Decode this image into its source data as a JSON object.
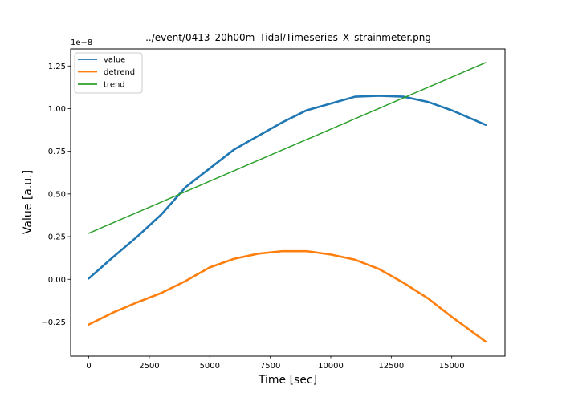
{
  "chart_data": {
    "type": "line",
    "title": "../event/0413_20h00m_Tidal/Timeseries_X_strainmeter.png",
    "xlabel": "Time [sec]",
    "ylabel": "Value [a.u.]",
    "y_offset_label": "1e−8",
    "xlim": [
      -750,
      17200
    ],
    "ylim": [
      -0.45,
      1.35
    ],
    "xticks": [
      0,
      2500,
      5000,
      7500,
      10000,
      12500,
      15000
    ],
    "xtick_labels": [
      "0",
      "2500",
      "5000",
      "7500",
      "10000",
      "12500",
      "15000"
    ],
    "yticks": [
      -0.25,
      0.0,
      0.25,
      0.5,
      0.75,
      1.0,
      1.25
    ],
    "ytick_labels": [
      "−0.25",
      "0.00",
      "0.25",
      "0.50",
      "0.75",
      "1.00",
      "1.25"
    ],
    "grid": false,
    "legend_position": "top-left",
    "series": [
      {
        "name": "value",
        "color": "#1f77b4",
        "x": [
          0,
          1000,
          2000,
          3000,
          4000,
          5000,
          6000,
          7000,
          8000,
          9000,
          10000,
          11000,
          12000,
          13000,
          14000,
          15000,
          16400
        ],
        "y": [
          0.005,
          0.13,
          0.25,
          0.38,
          0.54,
          0.65,
          0.76,
          0.84,
          0.92,
          0.99,
          1.03,
          1.07,
          1.075,
          1.07,
          1.04,
          0.99,
          0.905
        ]
      },
      {
        "name": "detrend",
        "color": "#ff7f0e",
        "x": [
          0,
          1000,
          2000,
          3000,
          4000,
          5000,
          6000,
          7000,
          8000,
          9000,
          10000,
          11000,
          12000,
          13000,
          14000,
          15000,
          16400
        ],
        "y": [
          -0.265,
          -0.195,
          -0.135,
          -0.08,
          -0.01,
          0.07,
          0.12,
          0.15,
          0.165,
          0.165,
          0.145,
          0.115,
          0.06,
          -0.02,
          -0.11,
          -0.22,
          -0.365
        ]
      },
      {
        "name": "trend",
        "color": "#2ca02c",
        "x": [
          0,
          16400
        ],
        "y": [
          0.27,
          1.27
        ]
      }
    ]
  }
}
